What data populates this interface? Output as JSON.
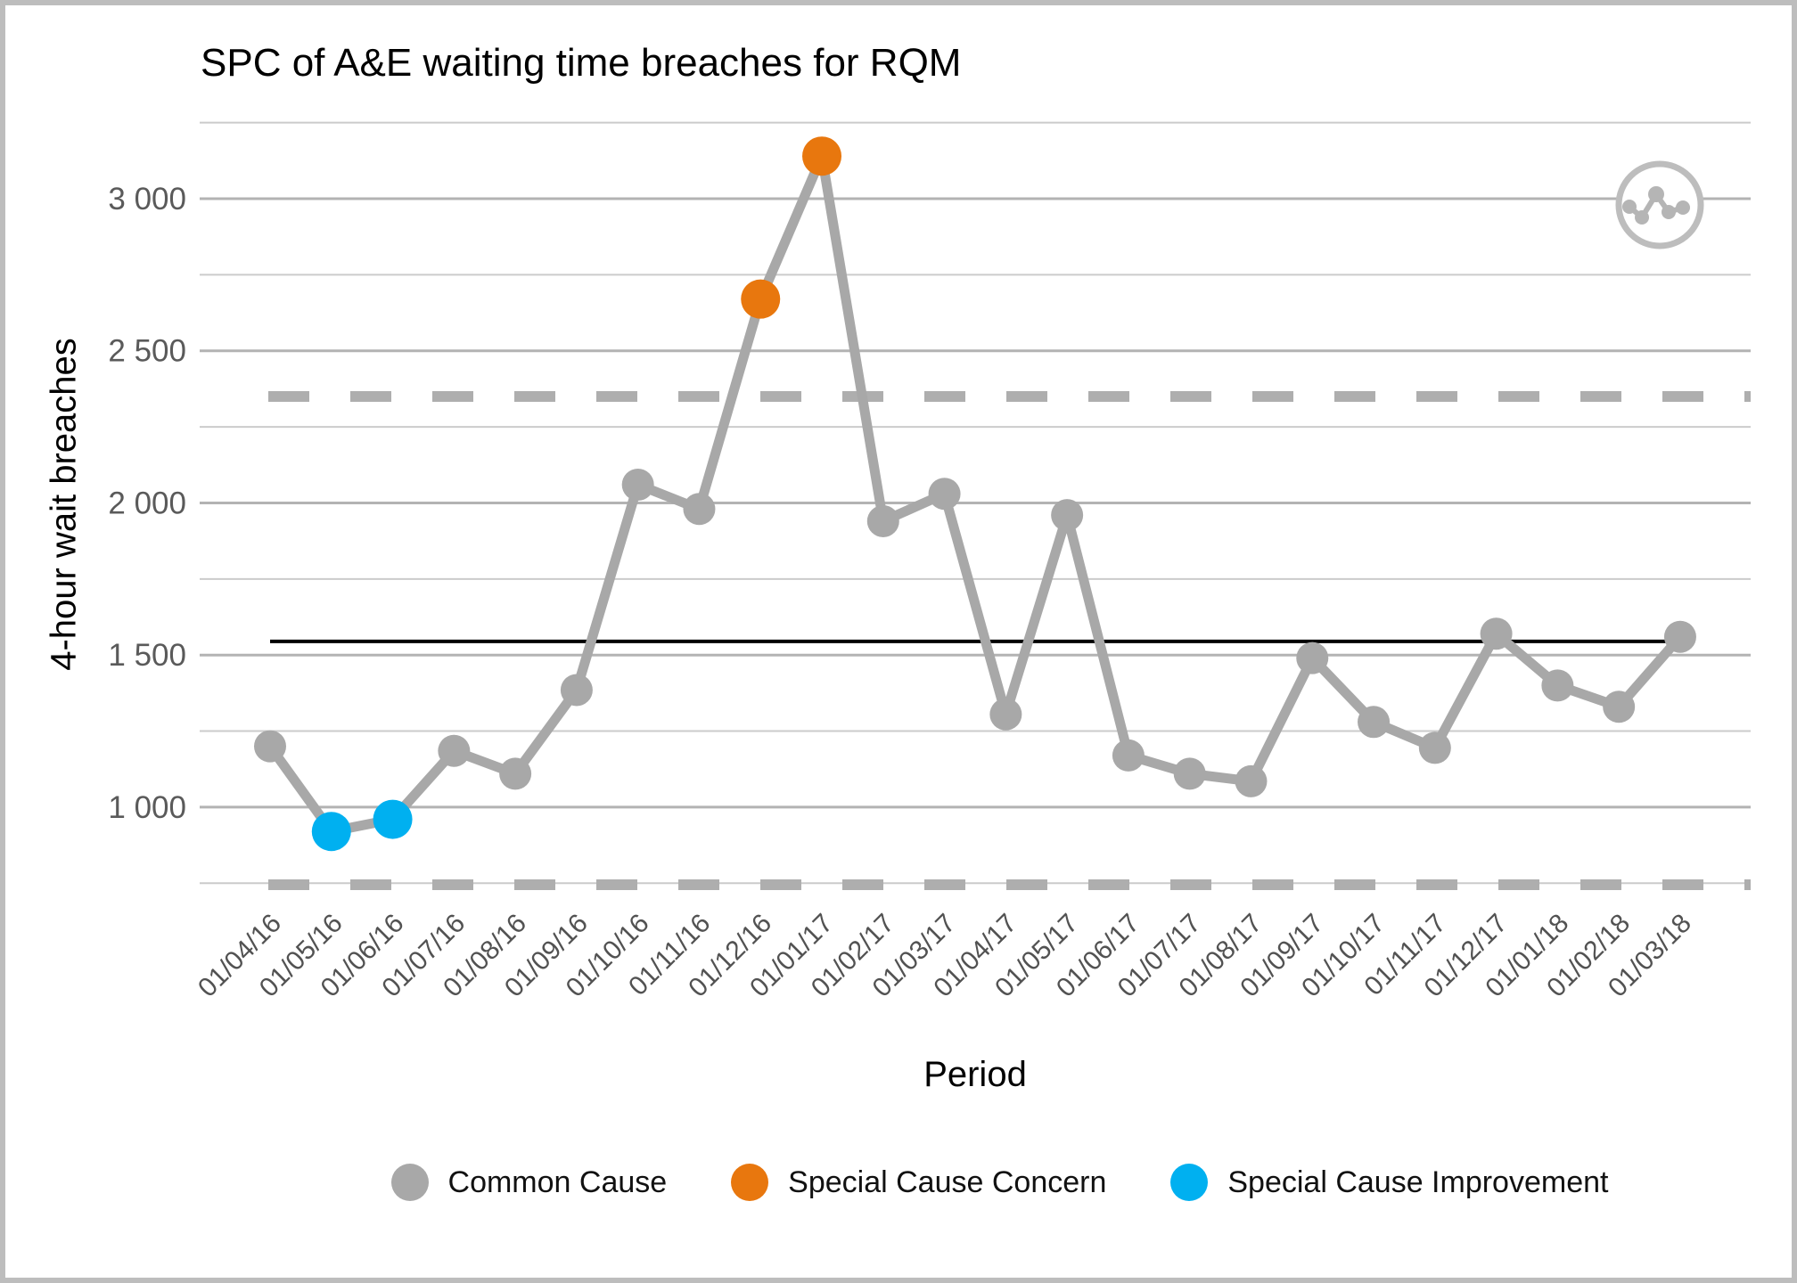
{
  "title": "SPC of A&E waiting time breaches for RQM",
  "icon": {
    "name": "line-chart-badge-icon"
  },
  "chart_data": {
    "type": "line",
    "title": "SPC of A&E waiting time breaches for RQM",
    "xlabel": "Period",
    "ylabel": "4-hour wait breaches",
    "grid": "horizontal",
    "legend_position": "bottom",
    "x": [
      "01/04/16",
      "01/05/16",
      "01/06/16",
      "01/07/16",
      "01/08/16",
      "01/09/16",
      "01/10/16",
      "01/11/16",
      "01/12/16",
      "01/01/17",
      "01/02/17",
      "01/03/17",
      "01/04/17",
      "01/05/17",
      "01/06/17",
      "01/07/17",
      "01/08/17",
      "01/09/17",
      "01/10/17",
      "01/11/17",
      "01/12/17",
      "01/01/18",
      "01/02/18",
      "01/03/18"
    ],
    "series": [
      {
        "name": "4-hour wait breaches",
        "values": [
          1200,
          920,
          960,
          1185,
          1110,
          1385,
          2060,
          1980,
          2670,
          3140,
          1940,
          2030,
          1305,
          1960,
          1170,
          1110,
          1085,
          1490,
          1280,
          1195,
          1570,
          1400,
          1330,
          1560
        ]
      }
    ],
    "point_types": [
      "common",
      "improvement",
      "improvement",
      "common",
      "common",
      "common",
      "common",
      "common",
      "concern",
      "concern",
      "common",
      "common",
      "common",
      "common",
      "common",
      "common",
      "common",
      "common",
      "common",
      "common",
      "common",
      "common",
      "common",
      "common"
    ],
    "control_lines": {
      "mean": 1545,
      "upper_limit": 2350,
      "lower_limit": 745,
      "mean_color": "#000000",
      "limit_color": "#aeaeae",
      "limit_style": "dashed"
    },
    "ylim": [
      700,
      3300
    ],
    "yticks": {
      "values": [
        1000,
        1500,
        2000,
        2500,
        3000
      ],
      "labels": [
        "1 000",
        "1 500",
        "2 000",
        "2 500",
        "3 000"
      ]
    },
    "minor_gridlines": [
      750,
      1250,
      1750,
      2250,
      2750,
      3250
    ],
    "line_color": "#a8a8a8",
    "palette": {
      "common": "#a8a8a8",
      "concern": "#e8770e",
      "improvement": "#00b0f0"
    },
    "legend": [
      {
        "label": "Common Cause",
        "color": "#a8a8a8"
      },
      {
        "label": "Special Cause Concern",
        "color": "#e8770e"
      },
      {
        "label": "Special Cause Improvement",
        "color": "#00b0f0"
      }
    ]
  }
}
